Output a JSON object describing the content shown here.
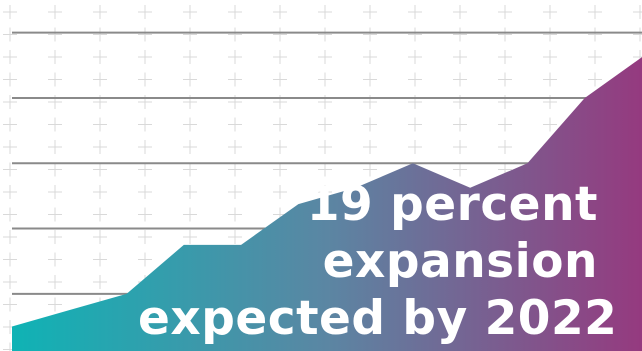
{
  "headline": {
    "line1": "19 percent",
    "line2": "expansion",
    "line3": "expected by 2022"
  },
  "colors": {
    "background": "#ffffff",
    "grid_cross": "#d9d9d9",
    "grid_line": "#8a8a8a",
    "gradient_start": "#0fb3b5",
    "gradient_mid": "#5b86a3",
    "gradient_end": "#953a7f",
    "text": "#ffffff"
  },
  "chart_data": {
    "type": "area",
    "title": "",
    "xlabel": "",
    "ylabel": "",
    "x": [
      0,
      1,
      2,
      3,
      4,
      5,
      6,
      7,
      8,
      9,
      10,
      11
    ],
    "values": [
      0,
      1,
      2,
      5,
      5,
      7.5,
      8.5,
      10,
      8.5,
      10,
      14,
      16.5
    ],
    "xlim": [
      0,
      11
    ],
    "ylim": [
      -1.5,
      20
    ],
    "hlines": [
      2,
      6,
      10,
      14,
      18
    ],
    "grid": true
  }
}
